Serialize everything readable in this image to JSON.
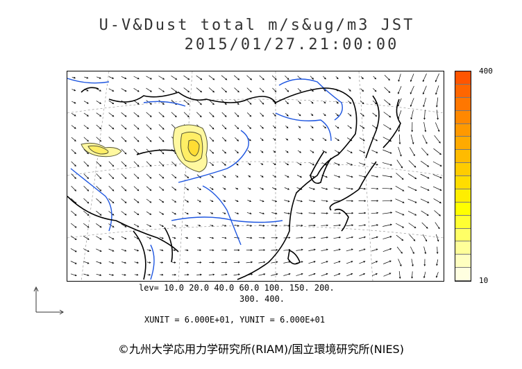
{
  "title": {
    "line1": "U-V&Dust total m/s&ug/m3 JST",
    "line2": "2015/01/27.21:00:00"
  },
  "colorbar": {
    "max_label": "400",
    "min_label": "10",
    "colors": [
      "#ffffe0",
      "#ffffc0",
      "#ffff99",
      "#ffff66",
      "#ffff33",
      "#ffff00",
      "#ffee00",
      "#ffdd00",
      "#ffcc00",
      "#ffbb00",
      "#ffaa00",
      "#ff9900",
      "#ff8800",
      "#ff7700",
      "#ff6600",
      "#ff5500"
    ]
  },
  "levels": {
    "line1": "lev= 10.0 20.0 40.0 60.0 100. 150. 200.",
    "line2": "300. 400."
  },
  "units": "XUNIT = 6.000E+01, YUNIT = 6.000E+01",
  "copyright": "©九州大学応用力学研究所(RIAM)/国立環境研究所(NIES)",
  "colors": {
    "coast": "#000000",
    "rivers": "#1e56e0",
    "dust_fill": "#fff8a0",
    "dust_line": "#555533"
  }
}
